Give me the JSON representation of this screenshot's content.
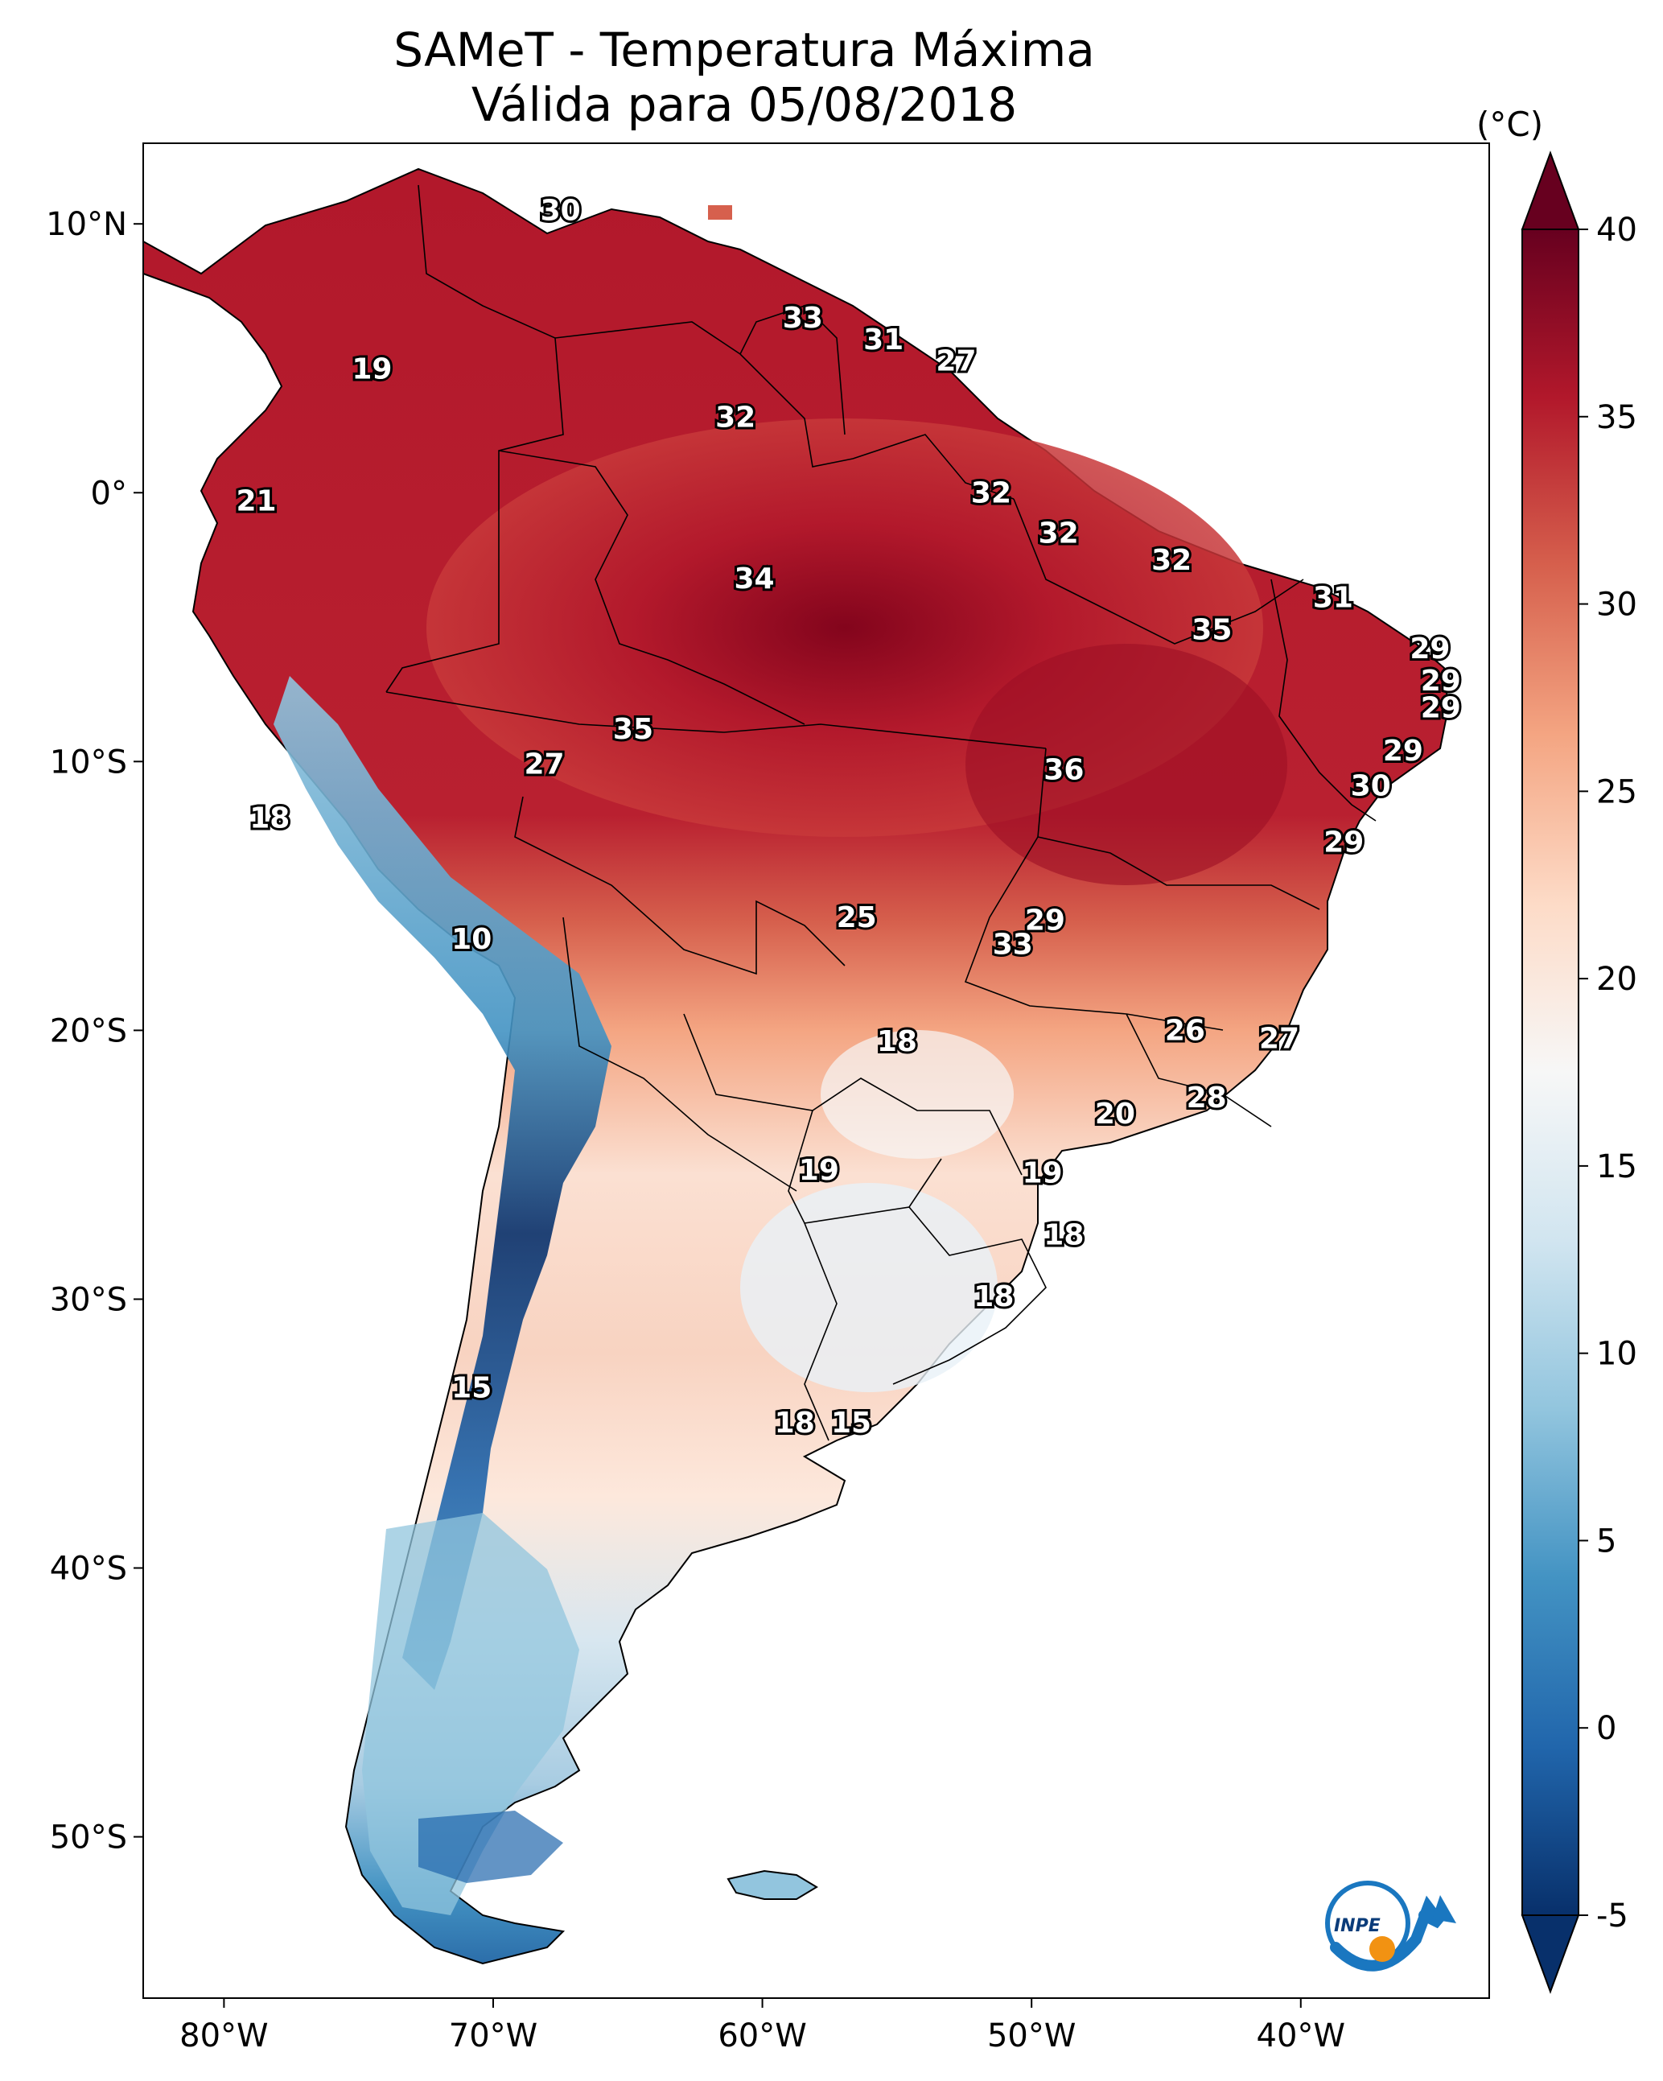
{
  "title": {
    "line1": "SAMeT - Temperatura Máxima",
    "line2": "Válida para 05/08/2018"
  },
  "colorbar": {
    "units": "(°C)",
    "min": -5,
    "max": 40,
    "ticks": [
      "40",
      "35",
      "30",
      "25",
      "20",
      "15",
      "10",
      "5",
      "0",
      "-5"
    ],
    "colors": [
      "#08306b",
      "#2166ac",
      "#4393c3",
      "#92c5de",
      "#d1e5f0",
      "#f7f7f7",
      "#fddbc7",
      "#f4a582",
      "#d6604d",
      "#b2182b",
      "#67001f"
    ]
  },
  "axes": {
    "lat_ticks": [
      "10°N",
      "0°",
      "10°S",
      "20°S",
      "30°S",
      "40°S",
      "50°S"
    ],
    "lon_ticks": [
      "80°W",
      "70°W",
      "60°W",
      "50°W",
      "40°W"
    ],
    "lat_range": [
      -56,
      13
    ],
    "lon_range": [
      -83,
      -33
    ]
  },
  "labels": [
    {
      "text": "30",
      "lon": -67.5,
      "lat": 10.5
    },
    {
      "text": "19",
      "lon": -74.5,
      "lat": 4.6
    },
    {
      "text": "33",
      "lon": -58.5,
      "lat": 6.5
    },
    {
      "text": "31",
      "lon": -55.5,
      "lat": 5.7
    },
    {
      "text": "27",
      "lon": -52.8,
      "lat": 4.9
    },
    {
      "text": "32",
      "lon": -61.0,
      "lat": 2.8
    },
    {
      "text": "21",
      "lon": -78.8,
      "lat": -0.3
    },
    {
      "text": "32",
      "lon": -51.5,
      "lat": 0.0
    },
    {
      "text": "32",
      "lon": -49.0,
      "lat": -1.5
    },
    {
      "text": "34",
      "lon": -60.3,
      "lat": -3.2
    },
    {
      "text": "32",
      "lon": -44.8,
      "lat": -2.5
    },
    {
      "text": "31",
      "lon": -38.8,
      "lat": -3.9
    },
    {
      "text": "35",
      "lon": -43.3,
      "lat": -5.1
    },
    {
      "text": "29",
      "lon": -35.2,
      "lat": -5.8
    },
    {
      "text": "29",
      "lon": -34.8,
      "lat": -7.0
    },
    {
      "text": "29",
      "lon": -34.8,
      "lat": -8.0
    },
    {
      "text": "35",
      "lon": -64.8,
      "lat": -8.8
    },
    {
      "text": "27",
      "lon": -68.1,
      "lat": -10.1
    },
    {
      "text": "36",
      "lon": -48.8,
      "lat": -10.3
    },
    {
      "text": "29",
      "lon": -36.2,
      "lat": -9.6
    },
    {
      "text": "30",
      "lon": -37.4,
      "lat": -10.9
    },
    {
      "text": "18",
      "lon": -78.3,
      "lat": -12.1
    },
    {
      "text": "29",
      "lon": -38.4,
      "lat": -13.0
    },
    {
      "text": "25",
      "lon": -56.5,
      "lat": -15.8
    },
    {
      "text": "29",
      "lon": -49.5,
      "lat": -15.9
    },
    {
      "text": "33",
      "lon": -50.7,
      "lat": -16.8
    },
    {
      "text": "10",
      "lon": -70.8,
      "lat": -16.6
    },
    {
      "text": "18",
      "lon": -55.0,
      "lat": -20.4
    },
    {
      "text": "26",
      "lon": -44.3,
      "lat": -20.0
    },
    {
      "text": "27",
      "lon": -40.8,
      "lat": -20.3
    },
    {
      "text": "28",
      "lon": -43.5,
      "lat": -22.5
    },
    {
      "text": "20",
      "lon": -46.9,
      "lat": -23.1
    },
    {
      "text": "19",
      "lon": -57.9,
      "lat": -25.2
    },
    {
      "text": "19",
      "lon": -49.6,
      "lat": -25.3
    },
    {
      "text": "18",
      "lon": -48.8,
      "lat": -27.6
    },
    {
      "text": "18",
      "lon": -51.4,
      "lat": -29.9
    },
    {
      "text": "15",
      "lon": -70.8,
      "lat": -33.3
    },
    {
      "text": "18",
      "lon": -58.8,
      "lat": -34.6
    },
    {
      "text": "15",
      "lon": -56.7,
      "lat": -34.6
    }
  ],
  "logo": {
    "text": "INPE"
  },
  "icons": {
    "logo": "inpe-logo-icon"
  }
}
